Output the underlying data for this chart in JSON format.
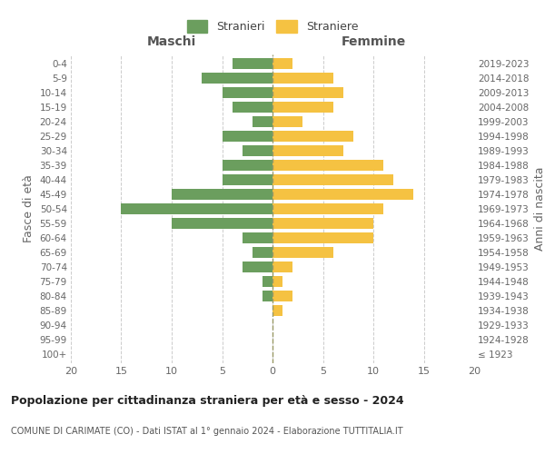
{
  "age_groups": [
    "100+",
    "95-99",
    "90-94",
    "85-89",
    "80-84",
    "75-79",
    "70-74",
    "65-69",
    "60-64",
    "55-59",
    "50-54",
    "45-49",
    "40-44",
    "35-39",
    "30-34",
    "25-29",
    "20-24",
    "15-19",
    "10-14",
    "5-9",
    "0-4"
  ],
  "birth_years": [
    "≤ 1923",
    "1924-1928",
    "1929-1933",
    "1934-1938",
    "1939-1943",
    "1944-1948",
    "1949-1953",
    "1954-1958",
    "1959-1963",
    "1964-1968",
    "1969-1973",
    "1974-1978",
    "1979-1983",
    "1984-1988",
    "1989-1993",
    "1994-1998",
    "1999-2003",
    "2004-2008",
    "2009-2013",
    "2014-2018",
    "2019-2023"
  ],
  "males": [
    0,
    0,
    0,
    0,
    1,
    1,
    3,
    2,
    3,
    10,
    15,
    10,
    5,
    5,
    3,
    5,
    2,
    4,
    5,
    7,
    4
  ],
  "females": [
    0,
    0,
    0,
    1,
    2,
    1,
    2,
    6,
    10,
    10,
    11,
    14,
    12,
    11,
    7,
    8,
    3,
    6,
    7,
    6,
    2
  ],
  "male_color": "#6b9e5e",
  "female_color": "#f5c242",
  "bar_height": 0.75,
  "xlim": 20,
  "title": "Popolazione per cittadinanza straniera per età e sesso - 2024",
  "subtitle": "COMUNE DI CARIMATE (CO) - Dati ISTAT al 1° gennaio 2024 - Elaborazione TUTTITALIA.IT",
  "ylabel_left": "Fasce di età",
  "ylabel_right": "Anni di nascita",
  "xlabel_left": "Maschi",
  "xlabel_right": "Femmine",
  "legend_male": "Stranieri",
  "legend_female": "Straniere",
  "background_color": "#ffffff",
  "grid_color": "#cccccc",
  "tick_color": "#888888",
  "label_color": "#666666"
}
